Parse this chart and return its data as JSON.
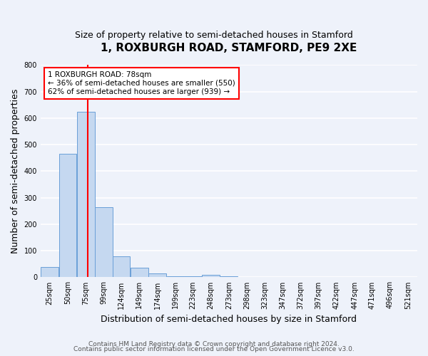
{
  "title": "1, ROXBURGH ROAD, STAMFORD, PE9 2XE",
  "subtitle": "Size of property relative to semi-detached houses in Stamford",
  "xlabel": "Distribution of semi-detached houses by size in Stamford",
  "ylabel": "Number of semi-detached properties",
  "bar_color": "#c5d8f0",
  "bar_edge_color": "#6a9fd8",
  "bar_heights": [
    38,
    465,
    625,
    265,
    80,
    35,
    14,
    5,
    5,
    10,
    5,
    0,
    0,
    0,
    0,
    0,
    0,
    0,
    0,
    0,
    0
  ],
  "bin_labels": [
    "25sqm",
    "50sqm",
    "75sqm",
    "99sqm",
    "124sqm",
    "149sqm",
    "174sqm",
    "199sqm",
    "223sqm",
    "248sqm",
    "273sqm",
    "298sqm",
    "323sqm",
    "347sqm",
    "372sqm",
    "397sqm",
    "422sqm",
    "447sqm",
    "471sqm",
    "496sqm",
    "521sqm"
  ],
  "bin_left_edges": [
    12.5,
    37.5,
    62.5,
    87.5,
    111.5,
    136.5,
    161.5,
    186.5,
    210.5,
    235.5,
    260.5,
    285.5,
    310.5,
    334.5,
    359.5,
    384.5,
    409.5,
    434.5,
    458.5,
    483.5,
    508.5
  ],
  "bin_width": 25,
  "ylim": [
    0,
    800
  ],
  "yticks": [
    0,
    100,
    200,
    300,
    400,
    500,
    600,
    700,
    800
  ],
  "xlim_min": 12.5,
  "xlim_max": 533.5,
  "vline_x": 78,
  "annotation_title": "1 ROXBURGH ROAD: 78sqm",
  "annotation_line1": "← 36% of semi-detached houses are smaller (550)",
  "annotation_line2": "62% of semi-detached houses are larger (939) →",
  "annotation_box_color": "white",
  "annotation_box_edge_color": "red",
  "vline_color": "red",
  "footer1": "Contains HM Land Registry data © Crown copyright and database right 2024.",
  "footer2": "Contains public sector information licensed under the Open Government Licence v3.0.",
  "background_color": "#eef2fa",
  "grid_color": "white",
  "title_fontsize": 11,
  "subtitle_fontsize": 9,
  "axis_label_fontsize": 9,
  "tick_fontsize": 7,
  "footer_fontsize": 6.5
}
